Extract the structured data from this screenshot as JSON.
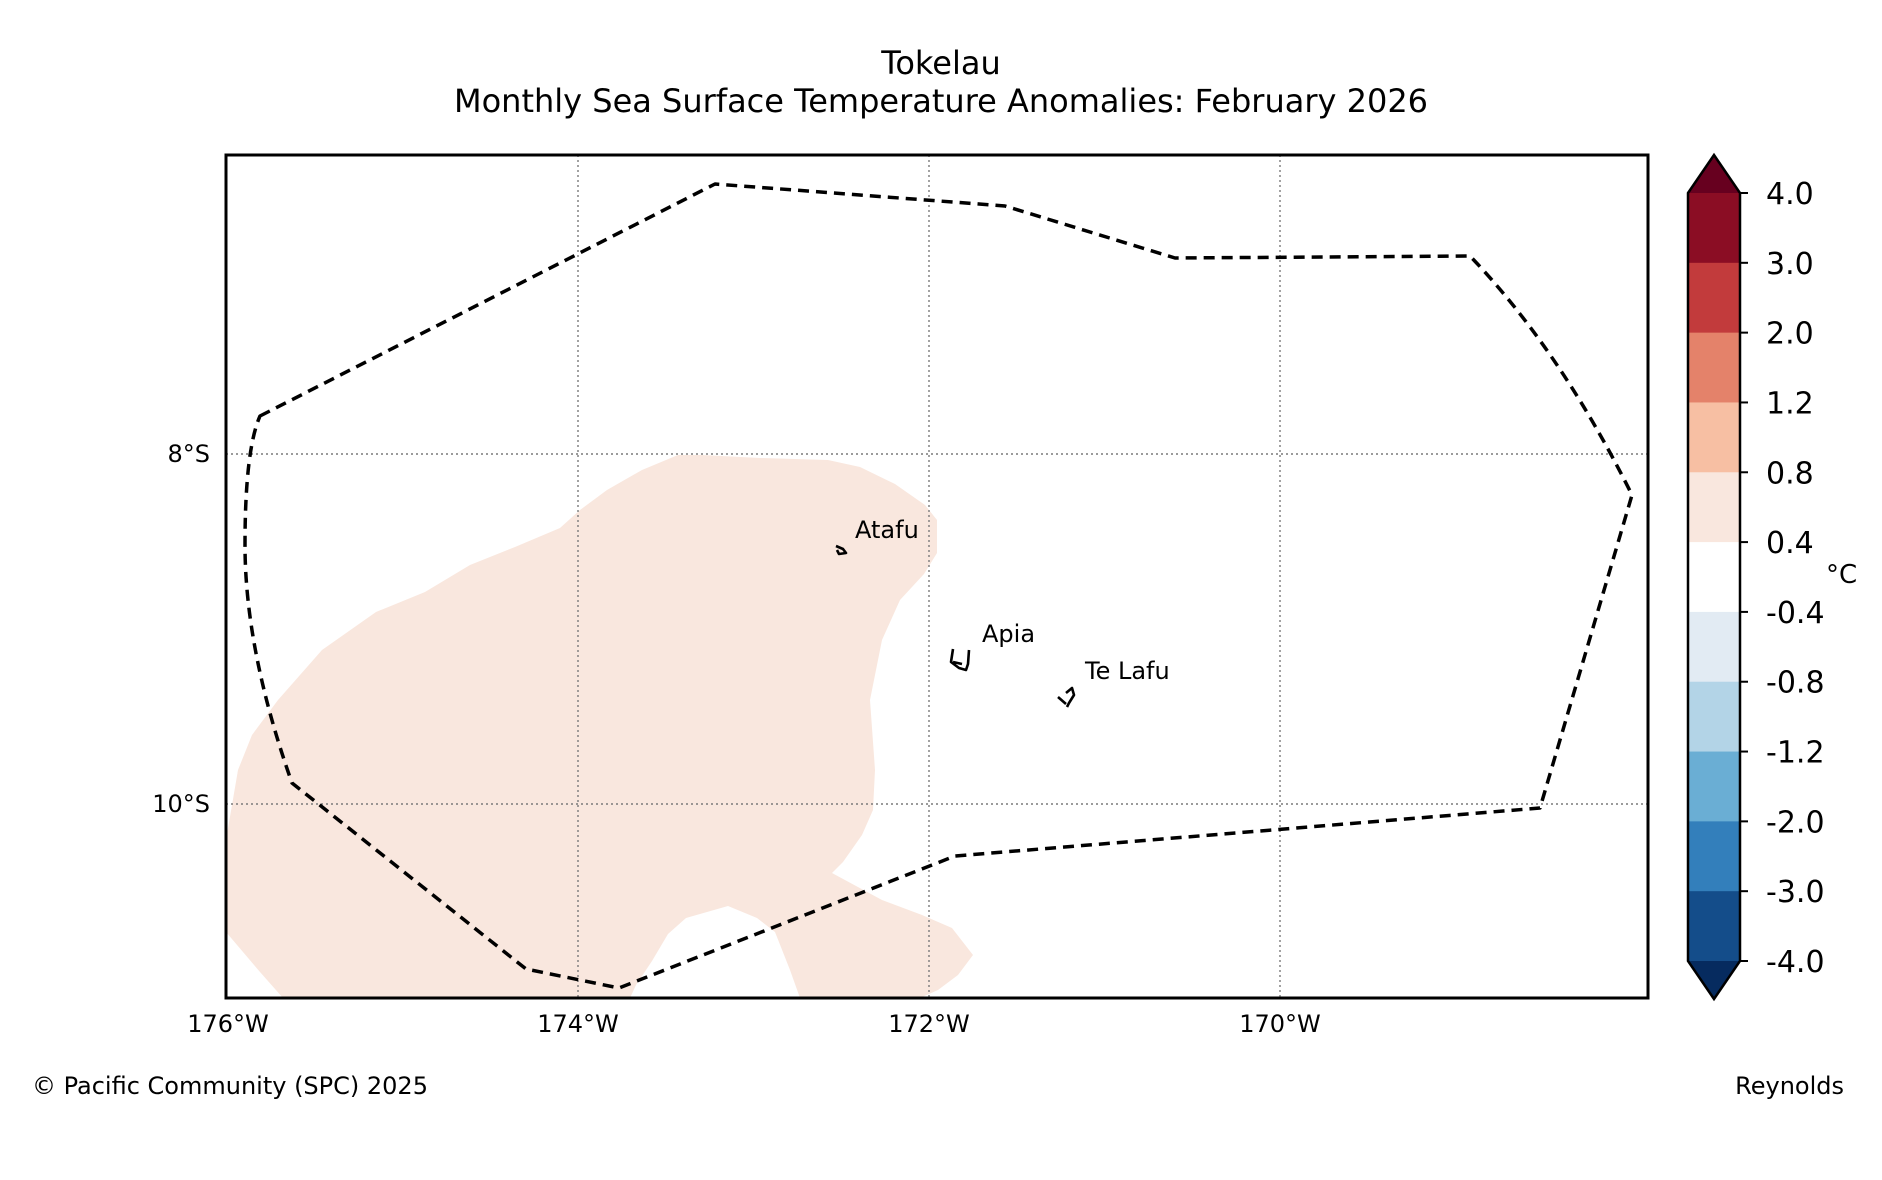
{
  "header": {
    "title": "Tokelau",
    "subtitle": "Monthly Sea Surface Temperature Anomalies: February 2026"
  },
  "map": {
    "lon_labels": [
      "176°W",
      "174°W",
      "172°W",
      "170°W"
    ],
    "lat_labels": [
      "8°S",
      "10°S"
    ],
    "places": [
      {
        "name": "Atafu"
      },
      {
        "name": "Apia"
      },
      {
        "name": "Te Lafu"
      }
    ],
    "anomaly_field_color": "#f9e7de",
    "eez_boundary_style": "dashed black line",
    "gridlines": "dotted grey"
  },
  "colorbar": {
    "unit": "°C",
    "tick_labels": [
      "4.0",
      "3.0",
      "2.0",
      "1.2",
      "0.8",
      "0.4",
      "-0.4",
      "-0.8",
      "-1.2",
      "-2.0",
      "-3.0",
      "-4.0"
    ],
    "bins": [
      {
        "range": "> 4.0",
        "color": "#67001f"
      },
      {
        "range": "3.0 to 4.0",
        "color": "#8b0d24"
      },
      {
        "range": "2.0 to 3.0",
        "color": "#c23b3c"
      },
      {
        "range": "1.2 to 2.0",
        "color": "#e4826a"
      },
      {
        "range": "0.8 to 1.2",
        "color": "#f7bfa3"
      },
      {
        "range": "0.4 to 0.8",
        "color": "#f9e7de"
      },
      {
        "range": "-0.4 to 0.4",
        "color": "#ffffff"
      },
      {
        "range": "-0.8 to -0.4",
        "color": "#e2ebf3"
      },
      {
        "range": "-1.2 to -0.8",
        "color": "#b3d4e7"
      },
      {
        "range": "-2.0 to -1.2",
        "color": "#6aaed4"
      },
      {
        "range": "-3.0 to -2.0",
        "color": "#337fbb"
      },
      {
        "range": "-4.0 to -3.0",
        "color": "#144d8a"
      },
      {
        "range": "< -4.0",
        "color": "#062b5f"
      }
    ]
  },
  "footer": {
    "copyright": "© Pacific Community (SPC) 2025",
    "source": "Reynolds"
  }
}
